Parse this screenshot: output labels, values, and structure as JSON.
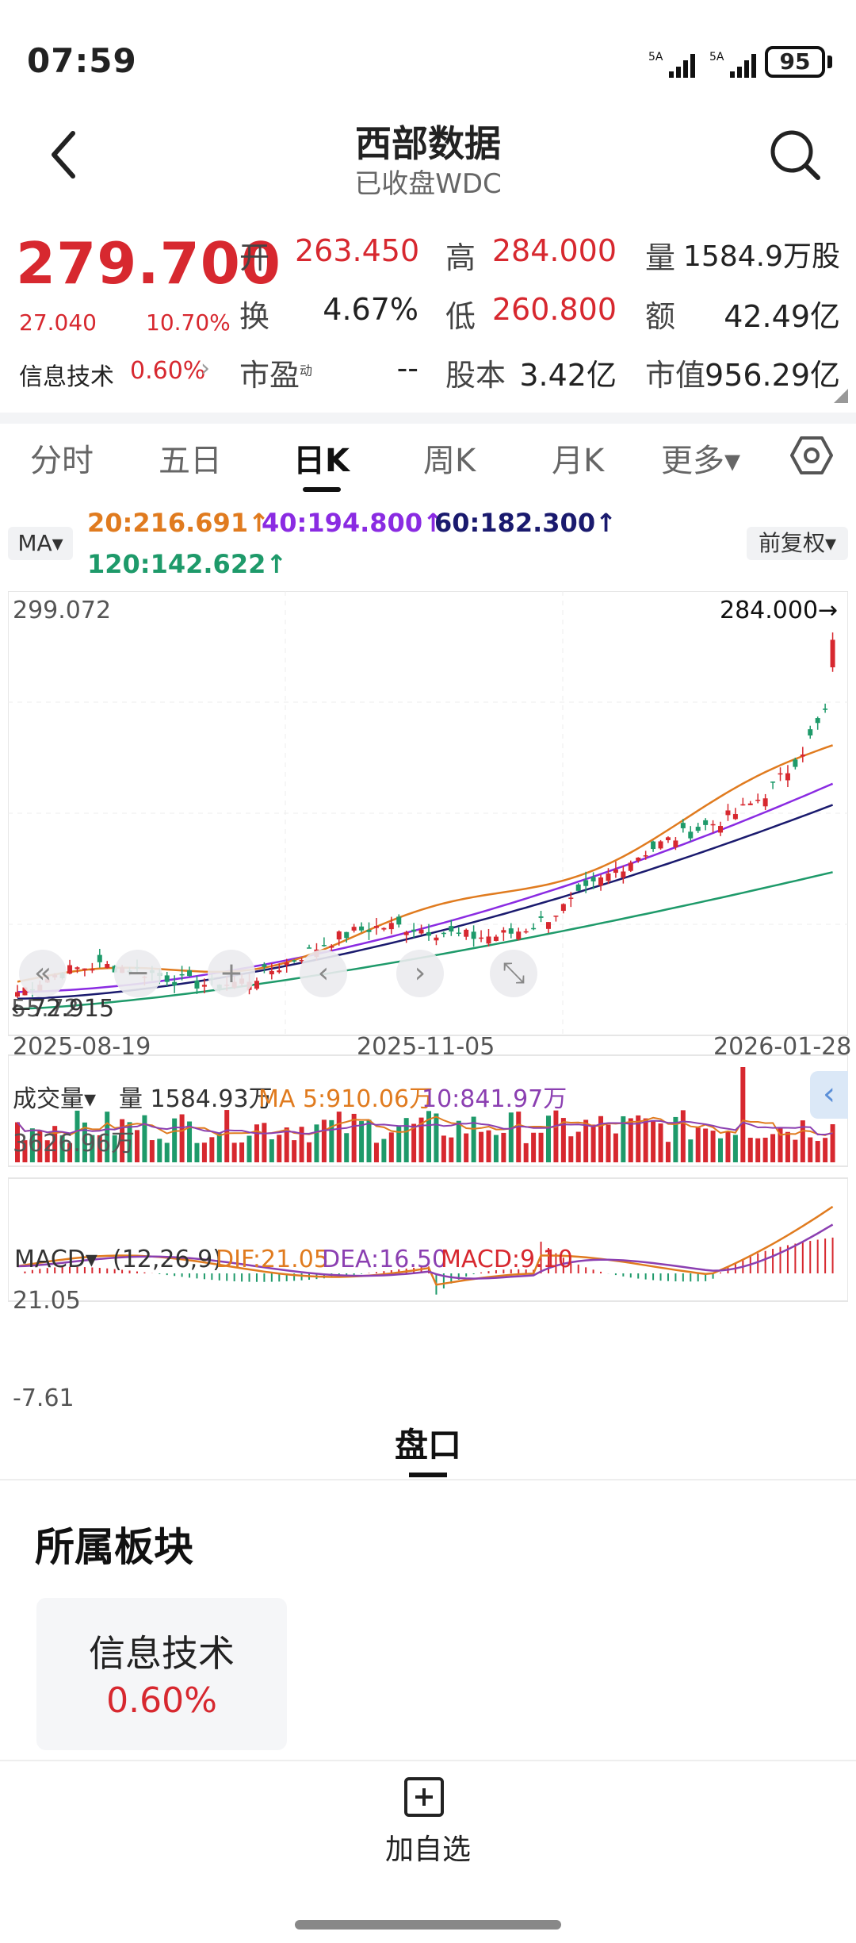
{
  "status_bar": {
    "time": "07:59",
    "battery": "95",
    "signal1": "5A",
    "signal2": "5A"
  },
  "header": {
    "title": "西部数据",
    "subtitle": "已收盘WDC"
  },
  "quote": {
    "price": "279.700",
    "change_abs": "27.040",
    "change_pct": "10.70%",
    "sector_name": "信息技术",
    "sector_pct": "0.60%",
    "fields": [
      {
        "label": "开",
        "value": "263.450",
        "color": "red"
      },
      {
        "label": "高",
        "value": "284.000",
        "color": "red"
      },
      {
        "label": "量",
        "value": "1584.9万股",
        "color": "black"
      },
      {
        "label": "换",
        "value": "4.67%",
        "color": "black"
      },
      {
        "label": "低",
        "value": "260.800",
        "color": "red"
      },
      {
        "label": "额",
        "value": "42.49亿",
        "color": "black"
      },
      {
        "label": "市盈",
        "label_sup": "动",
        "value": "--",
        "color": "black"
      },
      {
        "label": "股本",
        "value": "3.42亿",
        "color": "black"
      },
      {
        "label": "市值",
        "value": "956.29亿",
        "color": "black"
      }
    ]
  },
  "tabs": [
    {
      "label": "分时"
    },
    {
      "label": "五日"
    },
    {
      "label": "日K",
      "active": true
    },
    {
      "label": "周K"
    },
    {
      "label": "月K"
    },
    {
      "label": "更多▾"
    }
  ],
  "chart": {
    "ma_selector": "MA▾",
    "adjust_selector": "前复权▾",
    "ma20": "20:216.691↑",
    "ma40": "40:194.800↑",
    "ma60": "60:182.300↑",
    "ma120": "120:142.622↑",
    "y_high": "299.072",
    "y_low": "55.72",
    "overlay_low": "←72.915",
    "max_label": "284.000→",
    "x_labels": [
      "2025-08-19",
      "2025-11-05",
      "2026-01-28"
    ],
    "controls": [
      "«",
      "−",
      "+",
      "‹",
      "›",
      "⤡"
    ]
  },
  "volume": {
    "selector": "成交量▾",
    "current": "量 1584.93万",
    "ma5": "MA 5:910.06万",
    "ma10": "10:841.97万",
    "max": "3626.96万"
  },
  "macd": {
    "selector": "MACD▾",
    "params": "(12,26,9)",
    "dif": "DIF:21.05",
    "dea": "DEA:16.50",
    "macd": "MACD:9.10",
    "max": "21.05",
    "min": "-7.61"
  },
  "pankou": {
    "tab": "盘口"
  },
  "sector_section": {
    "title": "所属板块",
    "card_name": "信息技术",
    "card_pct": "0.60%"
  },
  "bottom": {
    "add_watch": "加自选"
  },
  "colors": {
    "red": "#d7282f",
    "green": "#1e9a6a",
    "ma20": "#e07b1f",
    "ma40": "#8a2be2",
    "ma60": "#1a1a6e",
    "ma120": "#1e9a6a"
  },
  "chart_data": {
    "type": "candlestick",
    "x_range": [
      "2025-08-19",
      "2026-01-28"
    ],
    "ylim": [
      55.72,
      299.072
    ],
    "last_close": 279.7,
    "last_high": 284.0,
    "ma_values": {
      "MA20": 216.691,
      "MA40": 194.8,
      "MA60": 182.3,
      "MA120": 142.622
    },
    "volume_max": "3626.96万",
    "macd_range": [
      -7.61,
      21.05
    ]
  }
}
